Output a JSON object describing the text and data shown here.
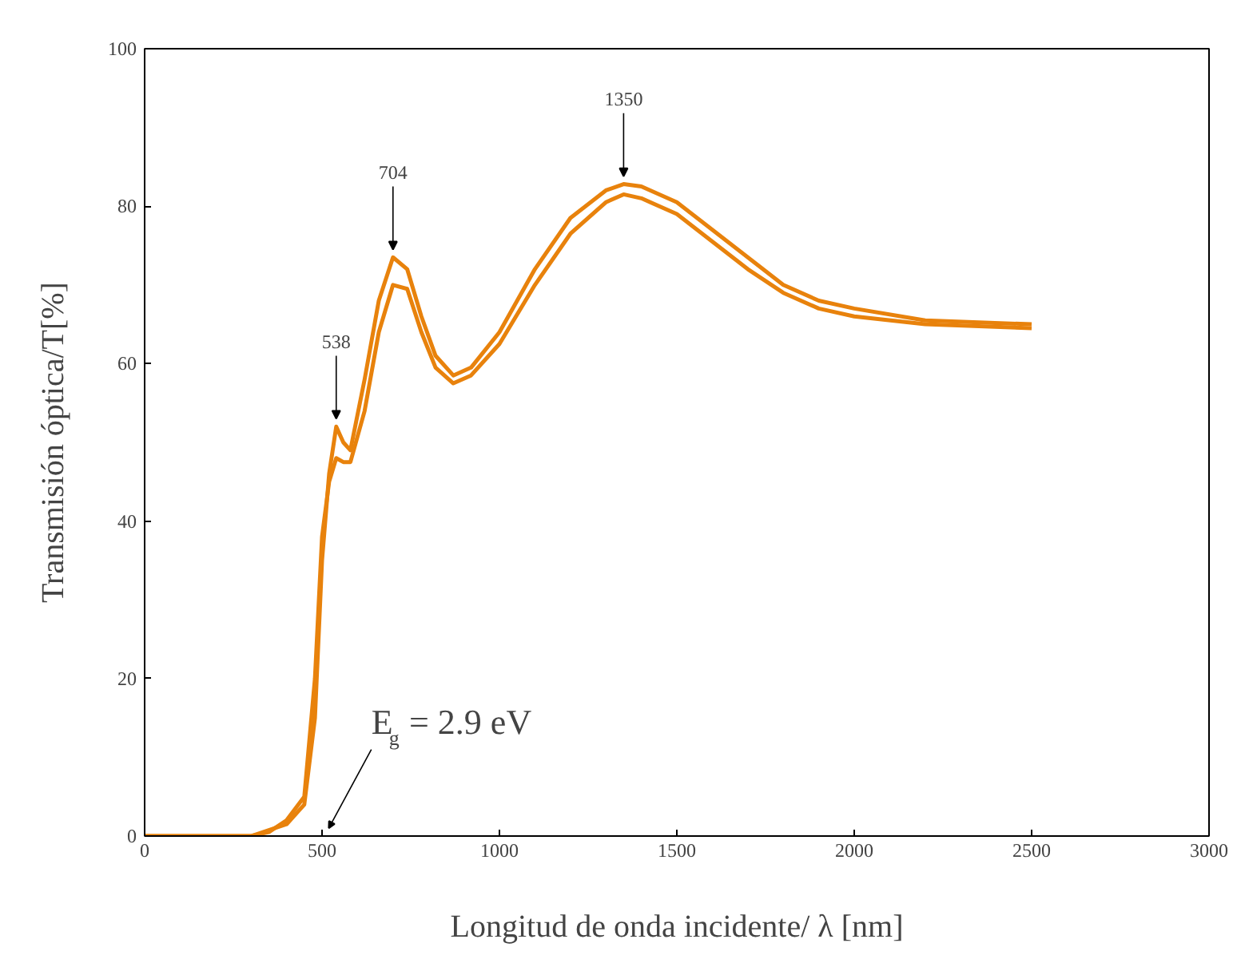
{
  "chart_data": {
    "type": "line",
    "xlabel": "Longitud de onda incidente/ λ [nm]",
    "ylabel": "Transmisión óptica/T[%]",
    "xlim": [
      0,
      3000
    ],
    "xticks": [
      0,
      500,
      1000,
      1500,
      2000,
      2500,
      3000
    ],
    "ylim": [
      0,
      100
    ],
    "yticks": [
      0,
      20,
      40,
      60,
      80,
      100
    ],
    "grid": false,
    "series": [
      {
        "color": "#e8820c",
        "x": [
          0,
          300,
          400,
          450,
          480,
          500,
          520,
          540,
          560,
          580,
          620,
          660,
          700,
          740,
          780,
          820,
          870,
          920,
          1000,
          1100,
          1200,
          1300,
          1350,
          1400,
          1500,
          1600,
          1700,
          1800,
          1900,
          2000,
          2200,
          2500
        ],
        "values": [
          0,
          0,
          1.5,
          4,
          15,
          35,
          46,
          52,
          50,
          49,
          58,
          68,
          73.5,
          72,
          66,
          61,
          58.5,
          59.5,
          64,
          72,
          78.5,
          82,
          82.8,
          82.5,
          80.5,
          77,
          73.5,
          70,
          68,
          67,
          65.5,
          65
        ]
      },
      {
        "color": "#e8820c",
        "x": [
          0,
          300,
          350,
          400,
          450,
          480,
          500,
          520,
          540,
          560,
          580,
          620,
          660,
          700,
          740,
          780,
          820,
          870,
          920,
          1000,
          1100,
          1200,
          1300,
          1350,
          1400,
          1500,
          1600,
          1700,
          1800,
          1900,
          2000,
          2200,
          2500
        ],
        "values": [
          0,
          0,
          0.5,
          2,
          5,
          20,
          38,
          45,
          48,
          47.5,
          47.5,
          54,
          64,
          70,
          69.5,
          64,
          59.5,
          57.5,
          58.5,
          62.5,
          70,
          76.5,
          80.5,
          81.5,
          81,
          79,
          75.5,
          72,
          69,
          67,
          66,
          65,
          64.5
        ]
      }
    ],
    "annotations": [
      {
        "text": "538",
        "x": 540,
        "y": 52
      },
      {
        "text": "704",
        "x": 700,
        "y": 73.5
      },
      {
        "text": "1350",
        "x": 1350,
        "y": 82.8
      },
      "E$_{g}$ = 2.9 eV"
    ]
  }
}
